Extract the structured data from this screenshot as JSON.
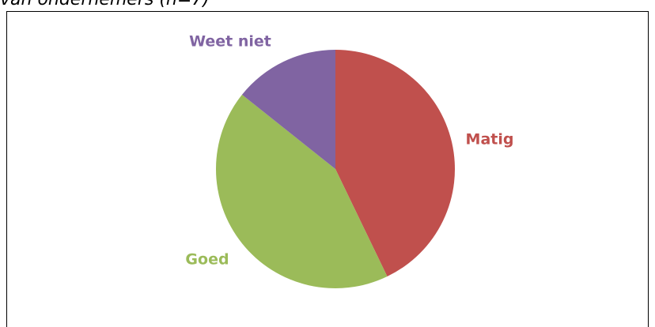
{
  "caption": "van ondernemers (n=7)",
  "chart_data": {
    "type": "pie",
    "categories": [
      "Matig",
      "Goed",
      "Weet niet"
    ],
    "values": [
      3,
      3,
      1
    ],
    "colors": [
      "#c0504d",
      "#9bbb59",
      "#8064a2"
    ]
  }
}
